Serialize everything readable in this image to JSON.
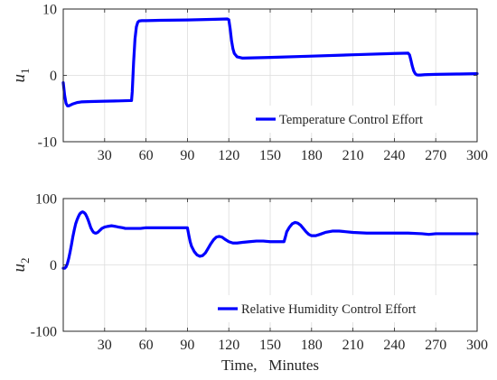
{
  "chart_data": [
    {
      "type": "line",
      "ylabel": "u",
      "ylabel_sub": "1",
      "xlim": [
        0,
        300
      ],
      "ylim": [
        -10,
        10
      ],
      "xticks": [
        30,
        60,
        90,
        120,
        150,
        180,
        210,
        240,
        270,
        300
      ],
      "yticks": [
        -10,
        0,
        10
      ],
      "grid": true,
      "legend_position": "bottom-right",
      "series": [
        {
          "name": "Temperature Control Effort",
          "color": "#0000ff",
          "x": [
            0,
            1,
            2,
            3,
            4,
            5,
            7,
            10,
            13,
            20,
            30,
            40,
            48,
            49.5,
            50,
            51,
            52,
            53,
            54,
            55,
            57,
            60,
            70,
            90,
            110,
            119,
            120,
            121,
            122,
            123,
            124,
            126,
            130,
            150,
            180,
            210,
            240,
            250,
            251,
            252,
            253,
            254,
            255,
            256,
            257,
            259,
            262,
            270,
            285,
            300
          ],
          "y": [
            -1.1,
            -3.0,
            -4.2,
            -4.6,
            -4.6,
            -4.5,
            -4.3,
            -4.1,
            -4.0,
            -3.95,
            -3.9,
            -3.85,
            -3.8,
            -3.8,
            -2.5,
            2.0,
            5.5,
            7.3,
            8.0,
            8.2,
            8.25,
            8.25,
            8.3,
            8.35,
            8.45,
            8.5,
            8.4,
            7.0,
            5.2,
            4.0,
            3.3,
            2.8,
            2.6,
            2.7,
            2.9,
            3.1,
            3.3,
            3.35,
            3.1,
            2.3,
            1.4,
            0.7,
            0.3,
            0.1,
            0.05,
            0.05,
            0.1,
            0.15,
            0.2,
            0.25
          ]
        }
      ]
    },
    {
      "type": "line",
      "ylabel": "u",
      "ylabel_sub": "2",
      "xlabel": "Time,   Minutes",
      "xlim": [
        0,
        300
      ],
      "ylim": [
        -100,
        100
      ],
      "xticks": [
        30,
        60,
        90,
        120,
        150,
        180,
        210,
        240,
        270,
        300
      ],
      "yticks": [
        -100,
        0,
        100
      ],
      "grid": true,
      "legend_position": "bottom-right",
      "series": [
        {
          "name": "Relative Humidity Control Effort",
          "color": "#0000ff",
          "x": [
            0,
            1,
            2,
            3,
            4,
            5,
            6,
            7,
            8,
            9,
            10,
            11,
            12,
            13,
            14,
            15,
            16,
            17,
            18,
            19,
            20,
            21,
            22,
            23,
            24,
            25,
            26,
            27,
            28,
            30,
            32,
            35,
            38,
            40,
            43,
            45,
            48,
            50,
            53,
            56,
            60,
            65,
            70,
            75,
            80,
            85,
            90,
            91,
            92,
            93,
            95,
            97,
            99,
            101,
            103,
            105,
            107,
            109,
            111,
            113,
            115,
            117,
            120,
            123,
            126,
            130,
            135,
            140,
            145,
            150,
            155,
            160,
            161,
            162,
            164,
            166,
            168,
            170,
            172,
            174,
            176,
            178,
            180,
            183,
            186,
            190,
            195,
            200,
            210,
            220,
            230,
            240,
            250,
            260,
            265,
            270,
            280,
            290,
            300
          ],
          "y": [
            -5,
            -5,
            -3,
            2,
            10,
            20,
            31,
            43,
            53,
            62,
            68,
            73,
            77,
            79,
            80,
            79,
            77,
            73,
            68,
            62,
            56,
            52,
            49,
            48,
            48,
            49,
            51,
            53,
            55,
            57,
            58,
            59,
            58,
            57,
            56,
            55,
            55,
            55,
            55,
            55,
            56,
            56,
            56,
            56,
            56,
            56,
            56,
            45,
            35,
            28,
            20,
            15,
            13,
            14,
            18,
            25,
            32,
            38,
            42,
            43,
            42,
            39,
            35,
            33,
            33,
            34,
            35,
            36,
            36,
            35,
            35,
            35,
            42,
            50,
            57,
            62,
            64,
            63,
            60,
            55,
            50,
            46,
            44,
            44,
            46,
            49,
            51,
            51,
            49,
            48,
            48,
            48,
            48,
            47,
            46,
            47,
            47,
            47,
            47
          ]
        }
      ]
    }
  ]
}
